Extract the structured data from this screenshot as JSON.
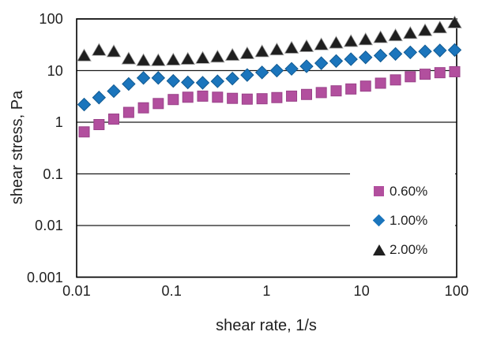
{
  "chart_data": {
    "type": "scatter",
    "x_scale": "log",
    "y_scale": "log",
    "xlabel": "shear rate, 1/s",
    "ylabel": "shear stress, Pa",
    "xlim": [
      0.01,
      100
    ],
    "ylim": [
      0.001,
      100
    ],
    "x_tick_values": [
      0.01,
      0.1,
      1,
      10,
      100
    ],
    "x_tick_labels": [
      "0.01",
      "0.1",
      "1",
      "10",
      "100"
    ],
    "y_tick_values": [
      0.001,
      0.01,
      0.1,
      1,
      10,
      100
    ],
    "y_tick_labels": [
      "0.001",
      "0.01",
      "0.1",
      "1",
      "10",
      "100"
    ],
    "grid": "horizontal-major-only",
    "legend_position": "inside-right",
    "x": [
      0.012,
      0.0172,
      0.0246,
      0.0353,
      0.0505,
      0.0723,
      0.104,
      0.148,
      0.212,
      0.304,
      0.436,
      0.624,
      0.894,
      1.28,
      1.83,
      2.63,
      3.76,
      5.39,
      7.71,
      11.0,
      15.8,
      22.7,
      32.5,
      46.5,
      66.6,
      95.3
    ],
    "series": [
      {
        "name": "0.60%",
        "marker": "square",
        "color": "#b24f9e",
        "edge": "#9a4289",
        "y": [
          0.65,
          0.9,
          1.15,
          1.55,
          1.9,
          2.3,
          2.75,
          3.05,
          3.2,
          3.05,
          2.9,
          2.8,
          2.85,
          3.0,
          3.2,
          3.45,
          3.75,
          4.05,
          4.4,
          5.0,
          5.7,
          6.6,
          7.6,
          8.5,
          9.1,
          9.5
        ]
      },
      {
        "name": "1.00%",
        "marker": "diamond",
        "color": "#1b75bc",
        "edge": "#115a92",
        "y": [
          2.2,
          3.0,
          4.0,
          5.5,
          7.2,
          7.2,
          6.3,
          5.9,
          5.8,
          6.2,
          7.0,
          8.2,
          9.2,
          10.0,
          10.8,
          12.1,
          13.9,
          15.3,
          16.6,
          18.0,
          19.5,
          21.0,
          22.5,
          23.5,
          24.5,
          25.0
        ]
      },
      {
        "name": "2.00%",
        "marker": "triangle",
        "color": "#1f1f1f",
        "edge": "#9e9e9e",
        "y": [
          19.5,
          25,
          23.5,
          17,
          15.8,
          15.8,
          16.2,
          16.8,
          17.5,
          18.5,
          20,
          21.5,
          23.5,
          25.5,
          27.5,
          29.5,
          32,
          34.5,
          37,
          40,
          44,
          48,
          53,
          60,
          68,
          85
        ]
      }
    ]
  },
  "colors": {
    "background": "#ffffff",
    "axis": "#000000",
    "grid": "#1a1a1a",
    "text": "#1f1f1f"
  }
}
